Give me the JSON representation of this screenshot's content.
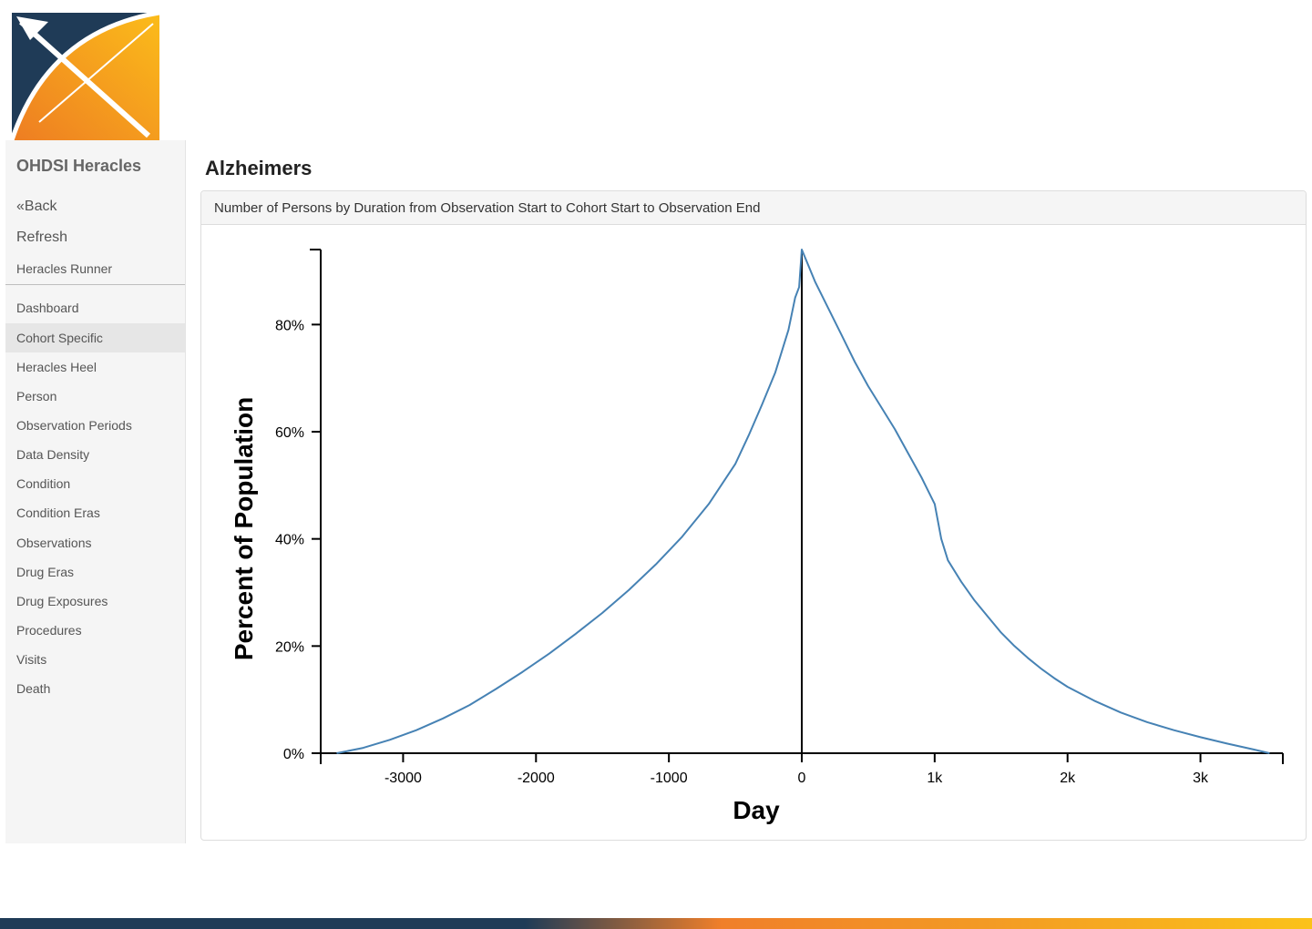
{
  "app": {
    "brand": "OHDSI Heracles"
  },
  "sidebar": {
    "top_items": [
      {
        "label": "«Back"
      },
      {
        "label": "Refresh"
      },
      {
        "label": "Heracles Runner"
      }
    ],
    "items": [
      {
        "label": "Dashboard"
      },
      {
        "label": "Cohort Specific",
        "active": true
      },
      {
        "label": "Heracles Heel"
      },
      {
        "label": "Person"
      },
      {
        "label": "Observation Periods"
      },
      {
        "label": "Data Density"
      },
      {
        "label": "Condition"
      },
      {
        "label": "Condition Eras"
      },
      {
        "label": "Observations"
      },
      {
        "label": "Drug Eras"
      },
      {
        "label": "Drug Exposures"
      },
      {
        "label": "Procedures"
      },
      {
        "label": "Visits"
      },
      {
        "label": "Death"
      }
    ]
  },
  "main": {
    "title": "Alzheimers",
    "panel_title": "Number of Persons by Duration from Observation Start to Cohort Start to Observation End"
  },
  "colors": {
    "line": "#4682b4",
    "sidebar_bg": "#f5f5f5",
    "active_item": "#e6e6e6"
  },
  "chart_data": {
    "type": "line",
    "xlabel": "Day",
    "ylabel": "Percent of Population",
    "xlim": [
      -3620,
      3620
    ],
    "ylim": [
      0,
      0.94
    ],
    "xticks": [
      {
        "value": -3000,
        "label": "-3000"
      },
      {
        "value": -2000,
        "label": "-2000"
      },
      {
        "value": -1000,
        "label": "-1000"
      },
      {
        "value": 0,
        "label": "0"
      },
      {
        "value": 1000,
        "label": "1k"
      },
      {
        "value": 2000,
        "label": "2k"
      },
      {
        "value": 3000,
        "label": "3k"
      }
    ],
    "yticks": [
      {
        "value": 0,
        "label": "0%"
      },
      {
        "value": 0.2,
        "label": "20%"
      },
      {
        "value": 0.4,
        "label": "40%"
      },
      {
        "value": 0.6,
        "label": "60%"
      },
      {
        "value": 0.8,
        "label": "80%"
      }
    ],
    "series": [
      {
        "points": [
          [
            -3500,
            0.0
          ],
          [
            -3300,
            0.01
          ],
          [
            -3100,
            0.025
          ],
          [
            -2900,
            0.043
          ],
          [
            -2700,
            0.065
          ],
          [
            -2500,
            0.09
          ],
          [
            -2300,
            0.12
          ],
          [
            -2100,
            0.152
          ],
          [
            -1900,
            0.186
          ],
          [
            -1700,
            0.223
          ],
          [
            -1500,
            0.262
          ],
          [
            -1300,
            0.305
          ],
          [
            -1100,
            0.352
          ],
          [
            -900,
            0.404
          ],
          [
            -700,
            0.465
          ],
          [
            -500,
            0.54
          ],
          [
            -400,
            0.593
          ],
          [
            -300,
            0.65
          ],
          [
            -200,
            0.71
          ],
          [
            -100,
            0.79
          ],
          [
            -50,
            0.85
          ],
          [
            -20,
            0.87
          ],
          [
            0,
            0.94
          ],
          [
            100,
            0.88
          ],
          [
            200,
            0.83
          ],
          [
            300,
            0.78
          ],
          [
            400,
            0.73
          ],
          [
            500,
            0.685
          ],
          [
            600,
            0.645
          ],
          [
            700,
            0.605
          ],
          [
            800,
            0.56
          ],
          [
            900,
            0.515
          ],
          [
            1000,
            0.465
          ],
          [
            1050,
            0.4
          ],
          [
            1100,
            0.36
          ],
          [
            1200,
            0.32
          ],
          [
            1300,
            0.285
          ],
          [
            1400,
            0.255
          ],
          [
            1500,
            0.225
          ],
          [
            1600,
            0.2
          ],
          [
            1700,
            0.178
          ],
          [
            1800,
            0.158
          ],
          [
            1900,
            0.14
          ],
          [
            2000,
            0.124
          ],
          [
            2200,
            0.098
          ],
          [
            2400,
            0.076
          ],
          [
            2600,
            0.058
          ],
          [
            2800,
            0.043
          ],
          [
            3000,
            0.03
          ],
          [
            3200,
            0.018
          ],
          [
            3400,
            0.007
          ],
          [
            3520,
            0.0
          ]
        ]
      }
    ]
  }
}
